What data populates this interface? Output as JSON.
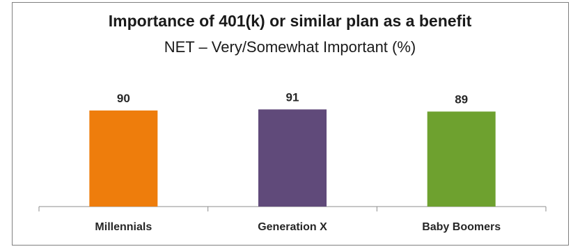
{
  "chart_data": {
    "type": "bar",
    "title": "Importance of 401(k) or similar plan as a benefit",
    "subtitle": "NET – Very/Somewhat Important (%)",
    "categories": [
      "Millennials",
      "Generation X",
      "Baby Boomers"
    ],
    "values": [
      90,
      91,
      89
    ],
    "data_labels": [
      "90",
      "91",
      "89"
    ],
    "colors": [
      "#ee7d0c",
      "#604a7a",
      "#6ea12f"
    ],
    "ylim": [
      0,
      100
    ],
    "grid": false,
    "legend": "none",
    "xlabel": "",
    "ylabel": ""
  }
}
